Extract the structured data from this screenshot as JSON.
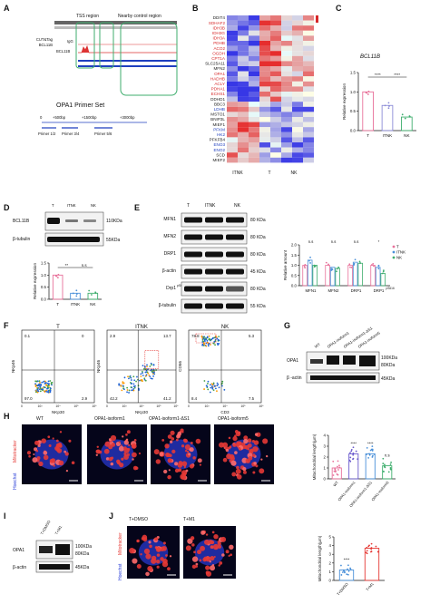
{
  "panel_labels": {
    "A": "A",
    "B": "B",
    "C": "C",
    "D": "D",
    "E": "E",
    "F": "F",
    "G": "G",
    "H": "H",
    "I": "I",
    "J": "J"
  },
  "panel_a": {
    "tss_label": "TSS region",
    "control_label": "Nearby control region",
    "track_group": "CUT&Tag",
    "track_group2": "BCL11B",
    "track_igg": "IgG",
    "track_bcl11b": "BCL11B",
    "primer_title": "OPA1 Primer Set",
    "ticks": [
      "0",
      "+500bp",
      "+1500bp",
      "+3000bp"
    ],
    "primers": [
      "Primer 1/2",
      "Primer 3/4",
      "Primer 5/6"
    ]
  },
  "panel_b": {
    "genes": [
      {
        "name": "DDIT4",
        "color": "#222222"
      },
      {
        "name": "SDHAF2",
        "color": "#d62728"
      },
      {
        "name": "IDH3B",
        "color": "#d62728"
      },
      {
        "name": "IDH3G",
        "color": "#d62728"
      },
      {
        "name": "IDH3A",
        "color": "#d62728"
      },
      {
        "name": "PDHB",
        "color": "#d62728"
      },
      {
        "name": "ACO2",
        "color": "#d62728"
      },
      {
        "name": "OGDH",
        "color": "#d62728"
      },
      {
        "name": "CPT1A",
        "color": "#d62728"
      },
      {
        "name": "SLC25A11",
        "color": "#222222"
      },
      {
        "name": "MFN2",
        "color": "#222222"
      },
      {
        "name": "OPA1",
        "color": "#d62728"
      },
      {
        "name": "HADHB",
        "color": "#d62728"
      },
      {
        "name": "ACLY",
        "color": "#d62728"
      },
      {
        "name": "PDHA1",
        "color": "#d62728"
      },
      {
        "name": "ECHS1",
        "color": "#d62728"
      },
      {
        "name": "DDHD1",
        "color": "#222222"
      },
      {
        "name": "BBC3",
        "color": "#222222"
      },
      {
        "name": "LDHB",
        "color": "#1f3fbf"
      },
      {
        "name": "MSTO1",
        "color": "#222222"
      },
      {
        "name": "BNIP3L",
        "color": "#222222"
      },
      {
        "name": "MIEF1",
        "color": "#222222"
      },
      {
        "name": "PFKM",
        "color": "#1f3fbf"
      },
      {
        "name": "HK2",
        "color": "#1f3fbf"
      },
      {
        "name": "PFKFB4",
        "color": "#222222"
      },
      {
        "name": "ENO3",
        "color": "#1f3fbf"
      },
      {
        "name": "ENO2",
        "color": "#1f3fbf"
      },
      {
        "name": "SCD",
        "color": "#222222"
      },
      {
        "name": "MIEF2",
        "color": "#222222"
      }
    ],
    "groups": [
      "ITNK",
      "T",
      "NK"
    ]
  },
  "chart_data": [
    {
      "panel": "C",
      "type": "bar",
      "title": "BCL11B",
      "ylabel": "Relative expression",
      "categories": [
        "T",
        "ITNK",
        "NK"
      ],
      "values": [
        1.0,
        0.65,
        0.35
      ],
      "ylim": [
        0,
        1.5
      ],
      "yticks": [
        "0.0",
        "0.5",
        "1.0",
        "1.5"
      ],
      "significance": [
        "****",
        "****"
      ],
      "colors": [
        "#e8719a",
        "#8a8ad6",
        "#3fae6e"
      ]
    },
    {
      "panel": "D",
      "type": "bar",
      "ylabel": "Relative expression",
      "categories": [
        "T",
        "ITNK",
        "NK"
      ],
      "values": [
        1.0,
        0.25,
        0.25
      ],
      "ylim": [
        0,
        1.5
      ],
      "yticks": [
        "0.0",
        "0.5",
        "1.0",
        "1.5"
      ],
      "significance": [
        "**",
        "n.s"
      ],
      "colors": [
        "#e8719a",
        "#4a90d9",
        "#3fae6e"
      ]
    },
    {
      "panel": "E",
      "type": "bar",
      "ylabel": "Relative amount",
      "categories": [
        "MFN1",
        "MFN2",
        "DRP1",
        "DRP1"
      ],
      "cat_sup": [
        "",
        "",
        "",
        "pS616"
      ],
      "legend": [
        "T",
        "ITNK",
        "NK"
      ],
      "series": [
        {
          "name": "T",
          "values": [
            1.0,
            1.0,
            1.0,
            1.0
          ]
        },
        {
          "name": "ITNK",
          "values": [
            1.25,
            0.9,
            1.15,
            0.9
          ]
        },
        {
          "name": "NK",
          "values": [
            1.0,
            0.85,
            1.1,
            0.6
          ]
        }
      ],
      "ylim": [
        0,
        2
      ],
      "yticks": [
        "0.0",
        "0.5",
        "1.0",
        "1.5",
        "2.0"
      ],
      "significance": [
        "n.s",
        "n.s",
        "n.s",
        "*"
      ],
      "colors": [
        "#e8719a",
        "#4a90d9",
        "#3fae6e"
      ]
    },
    {
      "panel": "H",
      "type": "bar",
      "ylabel": "Mitochondrial length(μm)",
      "categories": [
        "WT",
        "OPA1-isoform1",
        "OPA1-isoform1-ΔS1",
        "OPA1-isoform5"
      ],
      "values": [
        1.0,
        2.3,
        2.3,
        1.2
      ],
      "ylim": [
        0,
        4
      ],
      "yticks": [
        "0",
        "1",
        "2",
        "3",
        "4"
      ],
      "significance": [
        "",
        "****",
        "****",
        "n.s"
      ],
      "colors": [
        "#e8719a",
        "#6a5acd",
        "#4a90d9",
        "#3fae6e"
      ]
    },
    {
      "panel": "J",
      "type": "bar",
      "ylabel": "Mitochondrial length(μm)",
      "categories": [
        "T+DMSO",
        "T+M1"
      ],
      "values": [
        1.2,
        3.7
      ],
      "ylim": [
        0,
        5
      ],
      "yticks": [
        "0",
        "1",
        "2",
        "3",
        "4",
        "5"
      ],
      "significance": [
        "****"
      ],
      "colors": [
        "#4a90d9",
        "#e53935"
      ]
    }
  ],
  "panel_d": {
    "lanes": [
      "T",
      "ITNK",
      "NK"
    ],
    "rows": [
      "BCL11B",
      "β-tubulin"
    ],
    "sizes": [
      "110KDa",
      "55KDa"
    ]
  },
  "panel_e": {
    "lanes": [
      "T",
      "ITNK",
      "NK"
    ],
    "rows": [
      "MFN1",
      "MFN2",
      "DRP1",
      "β-actin",
      "Drp1",
      "β-tubulin"
    ],
    "row_sup": [
      "",
      "",
      "",
      "",
      "pS616",
      ""
    ],
    "sizes": [
      "80 KDa",
      "80 KDa",
      "80 KDa",
      "45 KDa",
      "80 KDa",
      "55 KDa"
    ]
  },
  "panel_f": {
    "plots": [
      {
        "title": "T",
        "q": [
          "0.1",
          "0",
          "97.0",
          "2.9"
        ],
        "xlabel": "NKp30",
        "ylabel": "NKp46"
      },
      {
        "title": "ITNK",
        "q": [
          "2.9",
          "13.7",
          "42.2",
          "41.2"
        ],
        "xlabel": "NKp30",
        "ylabel": "NKp46"
      },
      {
        "title": "NK",
        "q": [
          "78.8",
          "5.3",
          "8.4",
          "7.5"
        ],
        "xlabel": "CD3",
        "ylabel": "CD56"
      }
    ],
    "ticks": [
      "0",
      "10³",
      "10⁴",
      "10⁵",
      "10⁶"
    ]
  },
  "panel_g": {
    "lanes": [
      "WT",
      "OPA1-isoform1",
      "OPA1-isoform1-ΔS1",
      "OPA1-isoform5"
    ],
    "rows": [
      "OPA1",
      "β -actin"
    ],
    "sizes": [
      "100KDa",
      "80KDa",
      "45KDa"
    ]
  },
  "panel_h": {
    "titles": [
      "WT",
      "OPA1-isoform1",
      "OPA1-isoform1-ΔS1",
      "OPA1-isoform5"
    ],
    "stain1": "Hoechst",
    "stain2": "Mitotracker"
  },
  "panel_i": {
    "lanes": [
      "T+DMSO",
      "T+M1"
    ],
    "rows": [
      "OPA1",
      "β-actin"
    ],
    "sizes": [
      "100KDa",
      "80KDa",
      "45KDa"
    ]
  },
  "panel_j": {
    "titles": [
      "T+DMSO",
      "T+M1"
    ],
    "stain1": "Hoechst",
    "stain2": "Mitotracker"
  }
}
